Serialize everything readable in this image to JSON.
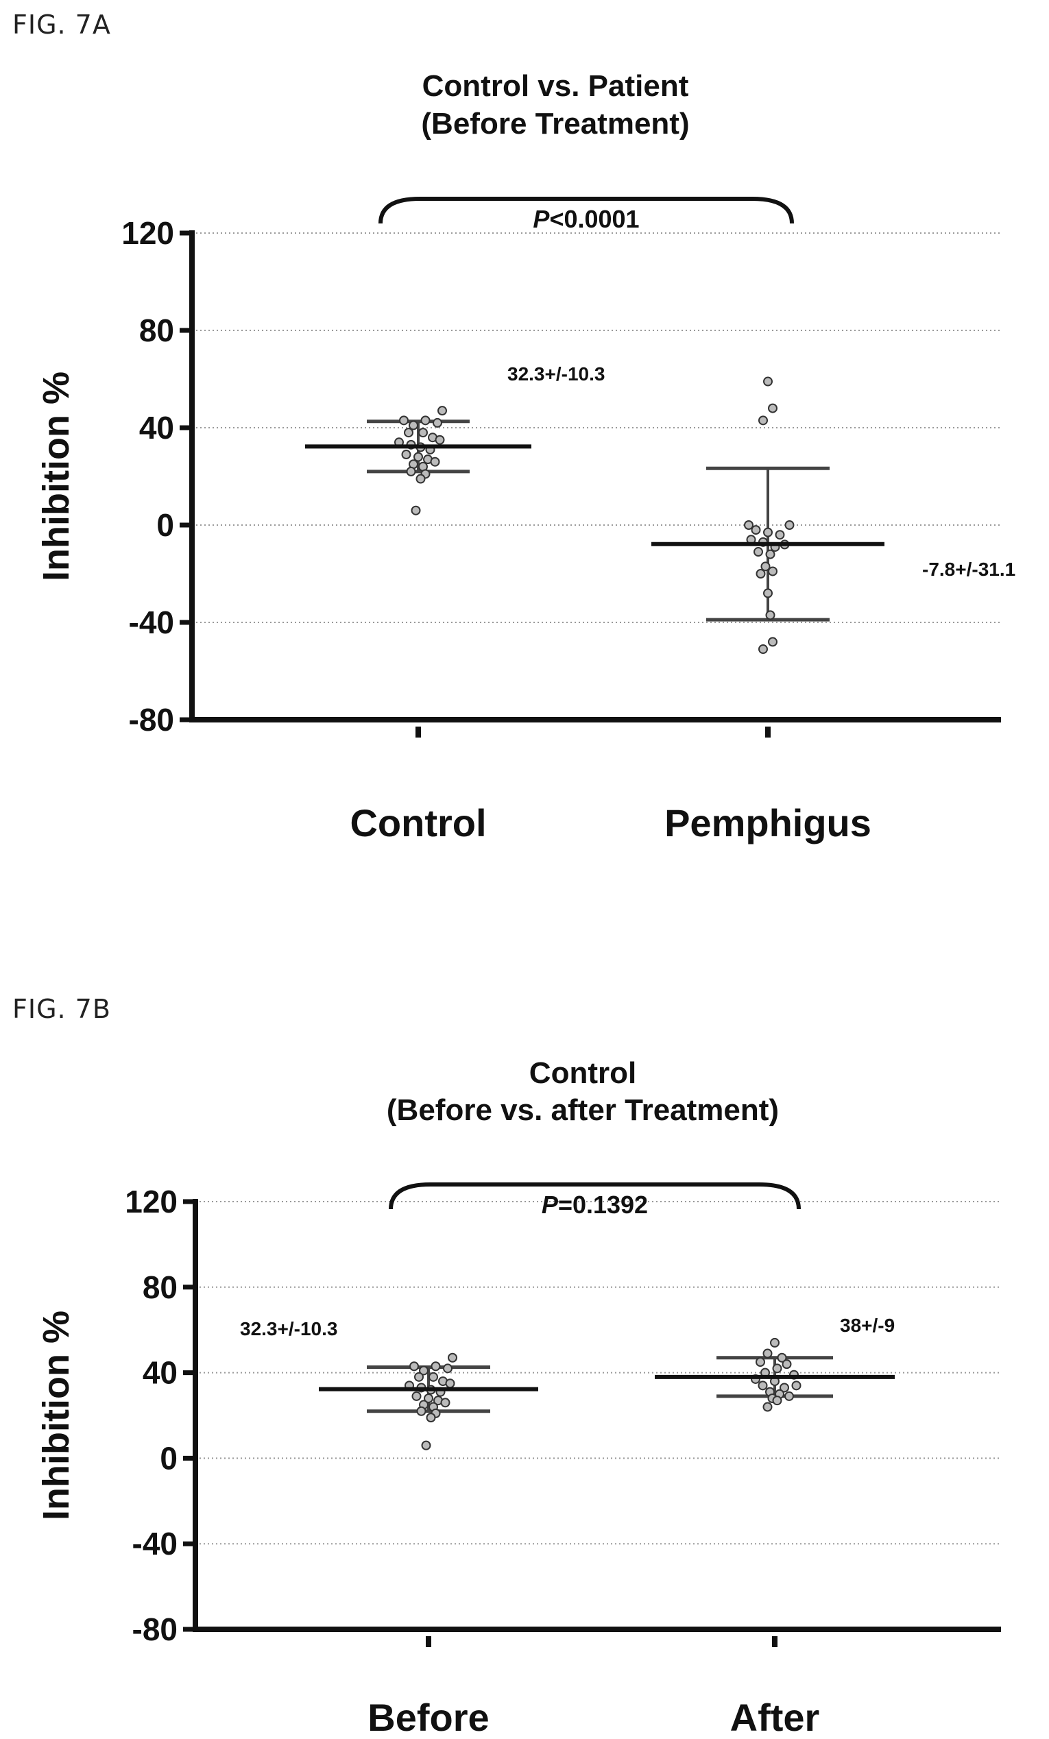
{
  "figures": {
    "a": {
      "label": "FIG. 7A"
    },
    "b": {
      "label": "FIG. 7B"
    }
  },
  "chart_data": [
    {
      "type": "scatter",
      "title": "Control vs. Patient",
      "subtitle": "(Before Treatment)",
      "ylabel": "Inhibition %",
      "xlabel": "",
      "ylim": [
        -80,
        120
      ],
      "yticks": [
        120,
        80,
        40,
        0,
        -40,
        -80
      ],
      "ytick_labels": [
        "120",
        "80",
        "40",
        "0",
        "-40",
        "-80"
      ],
      "grid": true,
      "categories": [
        "Control",
        "Pemphigus"
      ],
      "significance": {
        "prefix": "P",
        "text": "<0.0001"
      },
      "series": [
        {
          "category": "Control",
          "annotation": "32.3+/-10.3",
          "mean": 32.3,
          "sd_low": 22.0,
          "sd_high": 42.6,
          "points": [
            {
              "x": -0.06,
              "y": 43
            },
            {
              "x": -0.02,
              "y": 41
            },
            {
              "x": 0.03,
              "y": 43
            },
            {
              "x": 0.08,
              "y": 42
            },
            {
              "x": 0.1,
              "y": 47
            },
            {
              "x": -0.04,
              "y": 38
            },
            {
              "x": 0.02,
              "y": 38
            },
            {
              "x": 0.06,
              "y": 36
            },
            {
              "x": -0.08,
              "y": 34
            },
            {
              "x": -0.03,
              "y": 33
            },
            {
              "x": 0.01,
              "y": 32
            },
            {
              "x": 0.05,
              "y": 31
            },
            {
              "x": 0.09,
              "y": 35
            },
            {
              "x": -0.05,
              "y": 29
            },
            {
              "x": 0.0,
              "y": 28
            },
            {
              "x": 0.04,
              "y": 27
            },
            {
              "x": -0.02,
              "y": 25
            },
            {
              "x": 0.02,
              "y": 24
            },
            {
              "x": 0.07,
              "y": 26
            },
            {
              "x": -0.03,
              "y": 22
            },
            {
              "x": 0.03,
              "y": 21
            },
            {
              "x": 0.01,
              "y": 19
            },
            {
              "x": -0.01,
              "y": 6
            }
          ]
        },
        {
          "category": "Pemphigus",
          "annotation": "-7.8+/-31.1",
          "mean": -7.8,
          "sd_low": -38.9,
          "sd_high": 23.3,
          "points": [
            {
              "x": 0.0,
              "y": 59
            },
            {
              "x": 0.02,
              "y": 48
            },
            {
              "x": -0.02,
              "y": 43
            },
            {
              "x": -0.08,
              "y": 0
            },
            {
              "x": 0.09,
              "y": 0
            },
            {
              "x": -0.05,
              "y": -2
            },
            {
              "x": 0.05,
              "y": -4
            },
            {
              "x": 0.0,
              "y": -3
            },
            {
              "x": -0.07,
              "y": -6
            },
            {
              "x": 0.07,
              "y": -8
            },
            {
              "x": -0.02,
              "y": -7
            },
            {
              "x": 0.03,
              "y": -9
            },
            {
              "x": -0.04,
              "y": -11
            },
            {
              "x": 0.01,
              "y": -12
            },
            {
              "x": -0.01,
              "y": -17
            },
            {
              "x": 0.02,
              "y": -19
            },
            {
              "x": -0.03,
              "y": -20
            },
            {
              "x": 0.0,
              "y": -28
            },
            {
              "x": 0.01,
              "y": -37
            },
            {
              "x": 0.02,
              "y": -48
            },
            {
              "x": -0.02,
              "y": -51
            }
          ]
        }
      ]
    },
    {
      "type": "scatter",
      "title": "Control",
      "subtitle": "(Before vs. after Treatment)",
      "ylabel": "Inhibition %",
      "xlabel": "",
      "ylim": [
        -80,
        120
      ],
      "yticks": [
        120,
        80,
        40,
        0,
        -40,
        -80
      ],
      "ytick_labels": [
        "120",
        "80",
        "40",
        "0",
        "-40",
        "-80"
      ],
      "grid": true,
      "categories": [
        "Before",
        "After"
      ],
      "significance": {
        "prefix": "P",
        "text": "=0.1392"
      },
      "series": [
        {
          "category": "Before",
          "annotation": "32.3+/-10.3",
          "mean": 32.3,
          "sd_low": 22.0,
          "sd_high": 42.6,
          "points": [
            {
              "x": -0.06,
              "y": 43
            },
            {
              "x": -0.02,
              "y": 41
            },
            {
              "x": 0.03,
              "y": 43
            },
            {
              "x": 0.08,
              "y": 42
            },
            {
              "x": 0.1,
              "y": 47
            },
            {
              "x": -0.04,
              "y": 38
            },
            {
              "x": 0.02,
              "y": 38
            },
            {
              "x": 0.06,
              "y": 36
            },
            {
              "x": -0.08,
              "y": 34
            },
            {
              "x": -0.03,
              "y": 33
            },
            {
              "x": 0.01,
              "y": 32
            },
            {
              "x": 0.05,
              "y": 31
            },
            {
              "x": 0.09,
              "y": 35
            },
            {
              "x": -0.05,
              "y": 29
            },
            {
              "x": 0.0,
              "y": 28
            },
            {
              "x": 0.04,
              "y": 27
            },
            {
              "x": -0.02,
              "y": 25
            },
            {
              "x": 0.02,
              "y": 24
            },
            {
              "x": 0.07,
              "y": 26
            },
            {
              "x": -0.03,
              "y": 22
            },
            {
              "x": 0.03,
              "y": 21
            },
            {
              "x": 0.01,
              "y": 19
            },
            {
              "x": -0.01,
              "y": 6
            }
          ]
        },
        {
          "category": "After",
          "annotation": "38+/-9",
          "mean": 38.0,
          "sd_low": 29.0,
          "sd_high": 47.0,
          "points": [
            {
              "x": 0.0,
              "y": 54
            },
            {
              "x": -0.03,
              "y": 49
            },
            {
              "x": 0.03,
              "y": 47
            },
            {
              "x": -0.06,
              "y": 45
            },
            {
              "x": 0.05,
              "y": 44
            },
            {
              "x": 0.01,
              "y": 42
            },
            {
              "x": -0.04,
              "y": 40
            },
            {
              "x": 0.08,
              "y": 39
            },
            {
              "x": -0.08,
              "y": 37
            },
            {
              "x": 0.0,
              "y": 36
            },
            {
              "x": 0.09,
              "y": 34
            },
            {
              "x": -0.05,
              "y": 34
            },
            {
              "x": 0.04,
              "y": 33
            },
            {
              "x": -0.02,
              "y": 31
            },
            {
              "x": 0.02,
              "y": 30
            },
            {
              "x": 0.06,
              "y": 29
            },
            {
              "x": -0.01,
              "y": 28
            },
            {
              "x": 0.01,
              "y": 27
            },
            {
              "x": -0.03,
              "y": 24
            }
          ]
        }
      ]
    }
  ]
}
